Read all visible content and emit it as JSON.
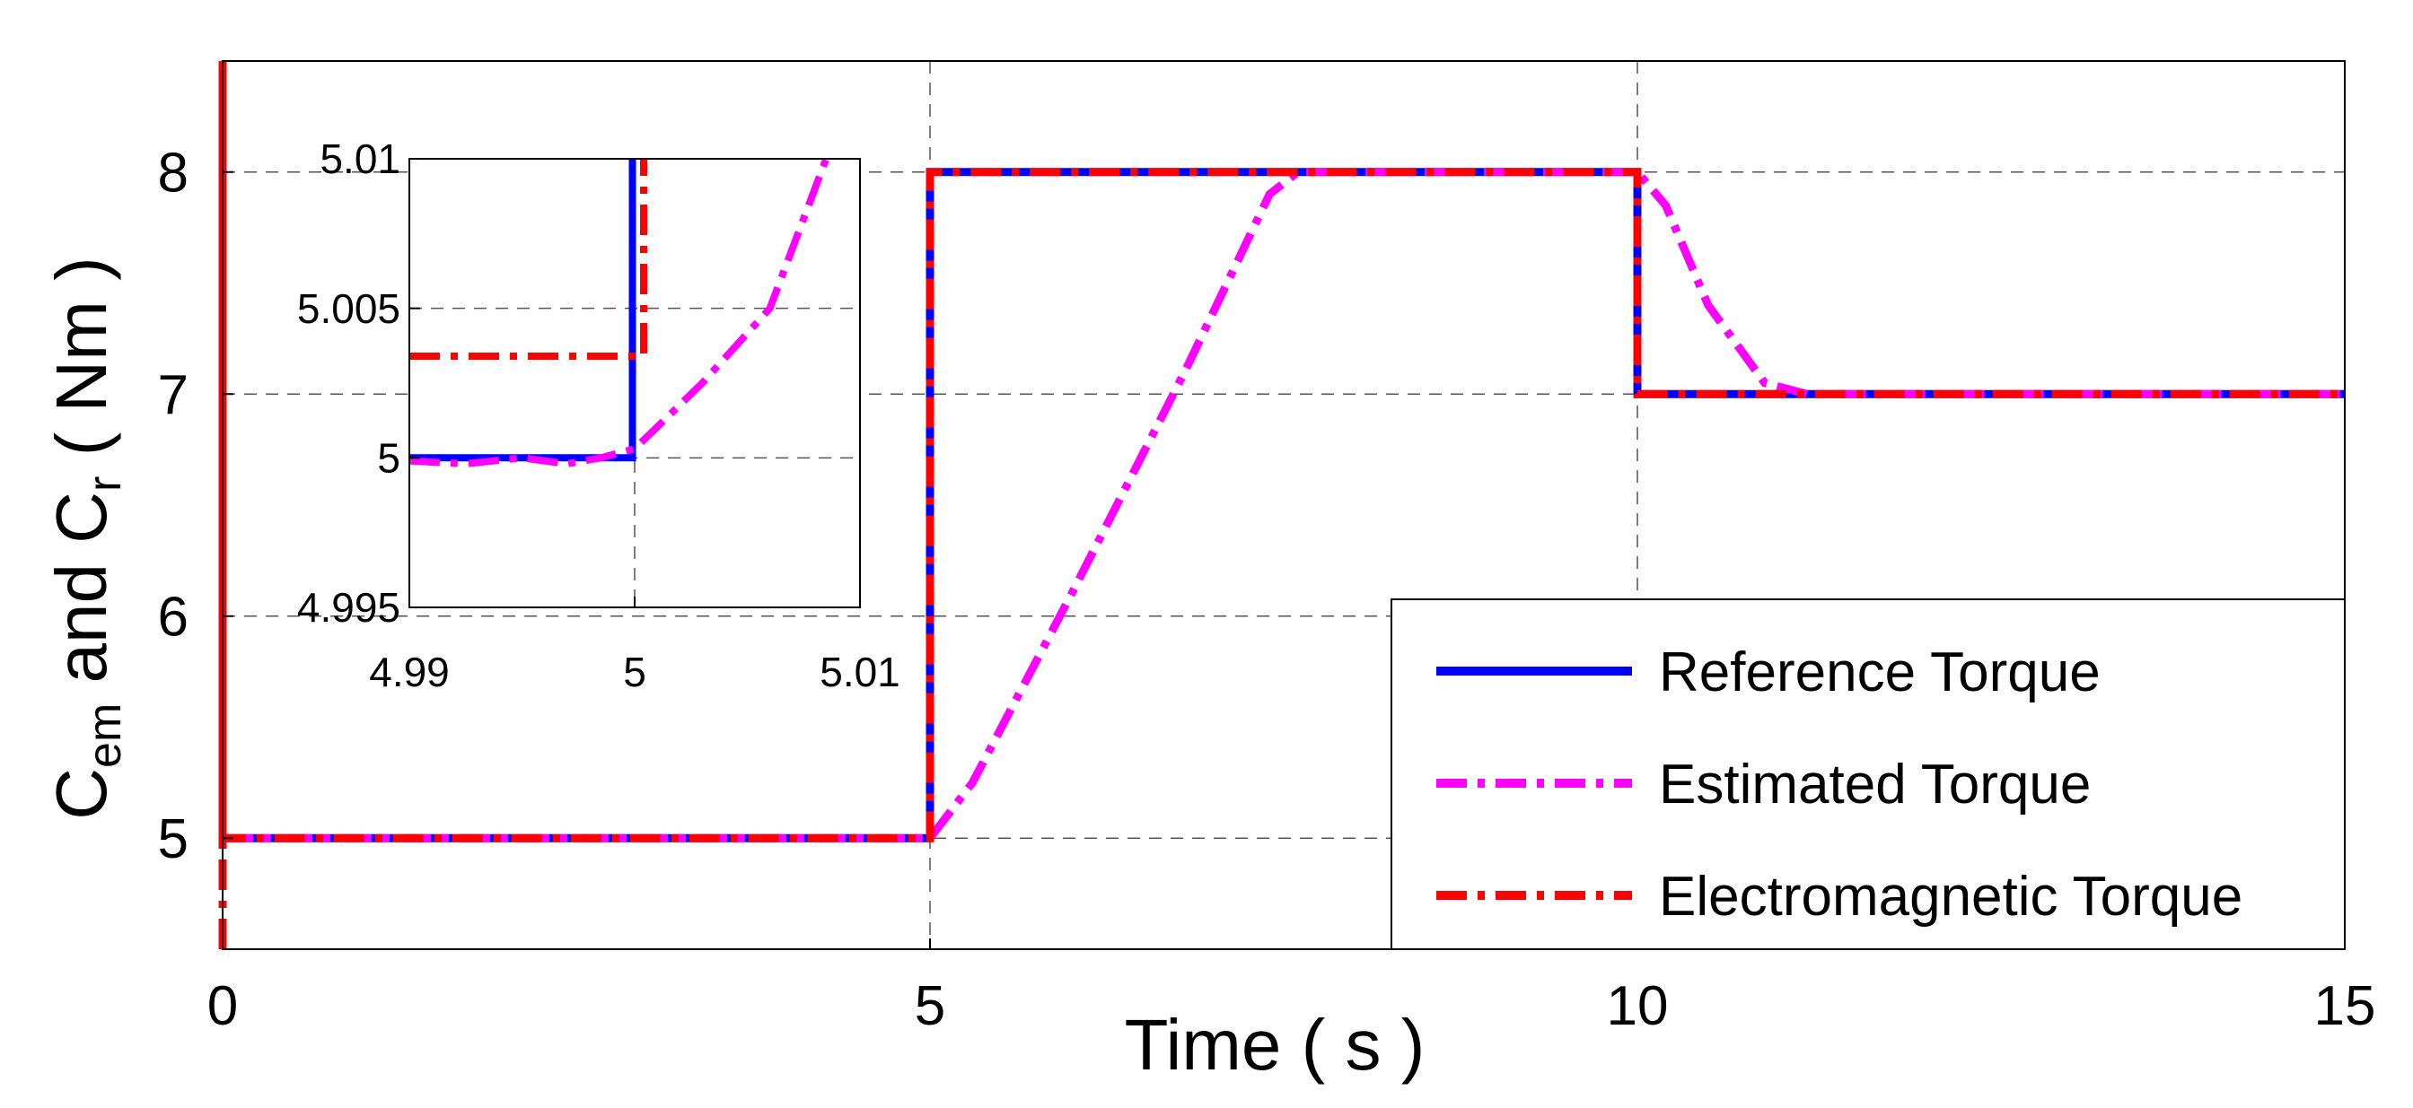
{
  "chart_data": [
    {
      "type": "line",
      "role": "main",
      "xlim": [
        0,
        15
      ],
      "ylim": [
        4.5,
        8.5
      ],
      "x_ticks": [
        0,
        5,
        10,
        15
      ],
      "y_ticks": [
        5,
        6,
        7,
        8
      ],
      "x_tick_labels": [
        "0",
        "5",
        "10",
        "15"
      ],
      "y_tick_labels": [
        "5",
        "6",
        "7",
        "8"
      ],
      "xlabel": "Time ( s )",
      "ylabel": {
        "c1": "C",
        "s1": "em",
        "mid": " and C",
        "s2": "r",
        "end": " ( Nm )"
      },
      "grid": true,
      "legend_position": "bottom-right",
      "series": [
        {
          "name": "Reference Torque",
          "color": "#0000ff",
          "style": "solid",
          "x": [
            0,
            5,
            5,
            10,
            10,
            15
          ],
          "y": [
            5,
            5,
            8,
            8,
            7,
            7
          ]
        },
        {
          "name": "Estimated Torque",
          "color": "#ff00ff",
          "style": "dash-dot",
          "x": [
            0,
            5,
            5.3,
            6.0,
            6.8,
            7.4,
            7.6,
            10,
            10.2,
            10.5,
            10.9,
            11.2,
            15
          ],
          "y": [
            5,
            5,
            5.25,
            6.1,
            7.1,
            7.9,
            8,
            8,
            7.85,
            7.4,
            7.05,
            7,
            7
          ]
        },
        {
          "name": "Electromagnetic Torque",
          "color": "#ff0000",
          "style": "dash-dot",
          "x": [
            0,
            0,
            0,
            5,
            5,
            10,
            10,
            15
          ],
          "y": [
            4.5,
            8.5,
            5,
            5,
            8,
            8,
            7,
            7
          ]
        }
      ]
    },
    {
      "type": "line",
      "role": "inset",
      "xlim": [
        4.99,
        5.01
      ],
      "ylim": [
        4.995,
        5.01
      ],
      "x_ticks": [
        4.99,
        5,
        5.01
      ],
      "y_ticks": [
        4.995,
        5,
        5.005,
        5.01
      ],
      "x_tick_labels": [
        "4.99",
        "5",
        "5.01"
      ],
      "y_tick_labels": [
        "4.995",
        "5",
        "5.005",
        "5.01"
      ],
      "grid": true,
      "series": [
        {
          "name": "Reference Torque",
          "color": "#0000ff",
          "style": "solid",
          "x": [
            4.99,
            4.9999,
            4.9999,
            4.9999
          ],
          "y": [
            5,
            5,
            5,
            5.01
          ]
        },
        {
          "name": "Estimated Torque",
          "color": "#ff00ff",
          "style": "dash-dot",
          "x": [
            4.99,
            4.9925,
            4.995,
            4.997,
            4.9985,
            5,
            5.003,
            5.006,
            5.0085
          ],
          "y": [
            4.9999,
            4.9998,
            5.0,
            4.9998,
            5.0,
            5.0003,
            5.0025,
            5.005,
            5.01
          ]
        },
        {
          "name": "Electromagnetic Torque",
          "color": "#ff0000",
          "style": "dash-dot",
          "x": [
            4.99,
            5.0004,
            5.0004
          ],
          "y": [
            5.0034,
            5.0034,
            5.01
          ]
        }
      ]
    }
  ]
}
